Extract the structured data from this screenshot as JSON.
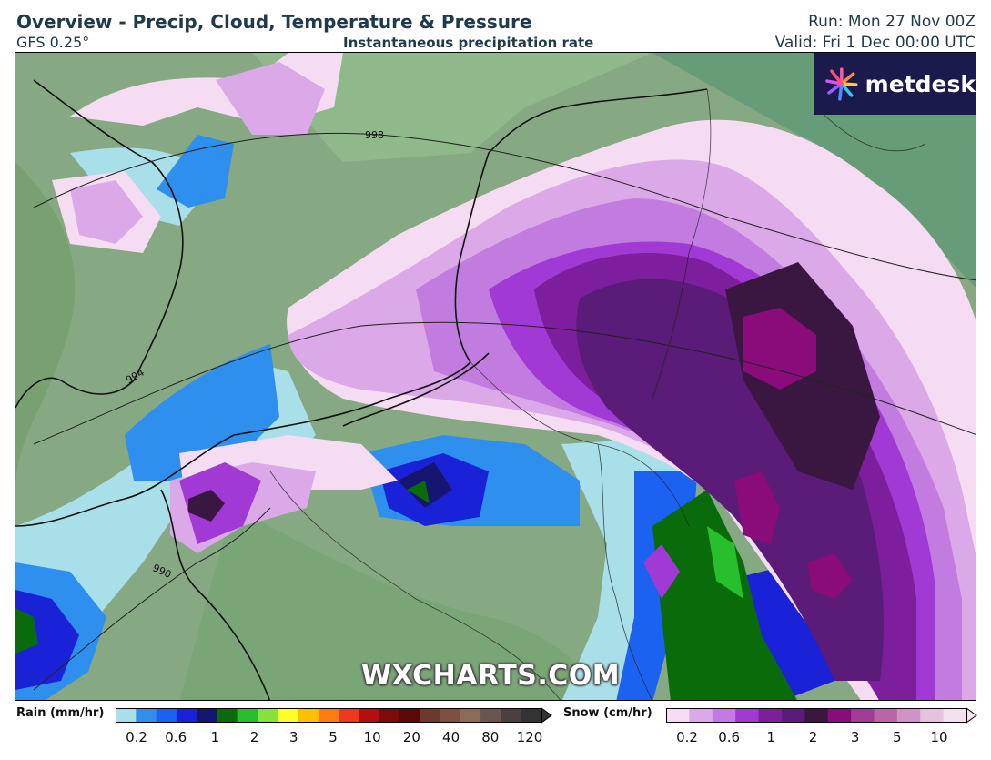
{
  "header": {
    "title": "Overview - Precip, Cloud, Temperature & Pressure",
    "model": "GFS 0.25°",
    "product": "Instantaneous precipitation rate",
    "run": "Run: Mon 27 Nov 00Z",
    "valid": "Valid: Fri 1 Dec 00:00 UTC"
  },
  "map": {
    "isobar_labels": [
      "998",
      "994",
      "990"
    ],
    "watermark": "WXCHARTS.COM",
    "logo": {
      "text": "metdesk",
      "icon": "flower-icon"
    }
  },
  "legend": {
    "rain": {
      "title": "Rain (mm/hr)",
      "ticks": [
        "0.2",
        "0.6",
        "1",
        "2",
        "3",
        "5",
        "10",
        "20",
        "40",
        "80",
        "120"
      ],
      "colors": [
        "#a8dfe8",
        "#2e8fef",
        "#1b62f0",
        "#1a22d8",
        "#16156f",
        "#0a6b0a",
        "#27bf2c",
        "#86e23b",
        "#ffff2b",
        "#ffc000",
        "#ff7a12",
        "#ec3a1c",
        "#b40e0e",
        "#7e0a0a",
        "#5b0a0a",
        "#6b3a2a",
        "#7d5040",
        "#8b6b55",
        "#6a5550",
        "#4a4040",
        "#333333"
      ]
    },
    "snow": {
      "title": "Snow (cm/hr)",
      "ticks": [
        "0.2",
        "0.6",
        "1",
        "2",
        "3",
        "5",
        "10"
      ],
      "colors": [
        "#f5dcf2",
        "#dba8e8",
        "#c27ce0",
        "#a13ad4",
        "#7d1f9c",
        "#5b1b78",
        "#3a1740",
        "#8a0b7a",
        "#a33a94",
        "#b966a8",
        "#d094c4",
        "#e6c2dd",
        "#f3e1ef"
      ]
    }
  }
}
